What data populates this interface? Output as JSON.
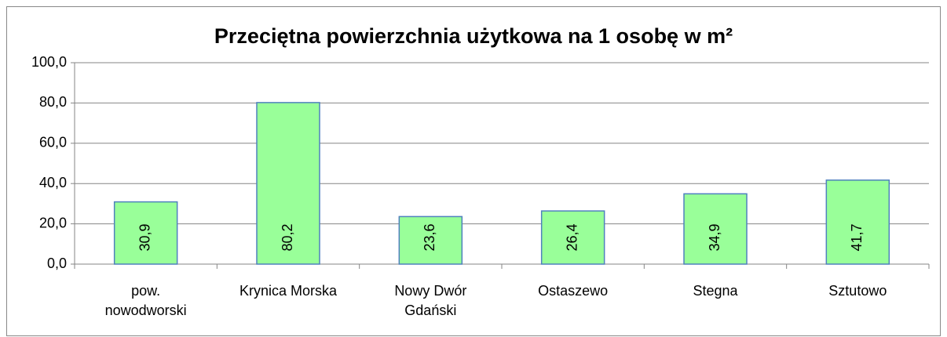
{
  "chart_data": {
    "type": "bar",
    "title": "Przeciętna powierzchnia użytkowa na 1 osobę w m²",
    "categories": [
      "pow.\nnowodworski",
      "Krynica Morska",
      "Nowy Dwór\nGdański",
      "Ostaszewo",
      "Stegna",
      "Sztutowo"
    ],
    "values": [
      30.9,
      80.2,
      23.6,
      26.4,
      34.9,
      41.7
    ],
    "value_labels": [
      "30,9",
      "80,2",
      "23,6",
      "26,4",
      "34,9",
      "41,7"
    ],
    "color": "#99ff99",
    "edge_color": "#4f81bd",
    "ylim": [
      0,
      100
    ],
    "yticks": [
      {
        "value": 0,
        "label": "0,0"
      },
      {
        "value": 20,
        "label": "20,0"
      },
      {
        "value": 40,
        "label": "40,0"
      },
      {
        "value": 60,
        "label": "60,0"
      },
      {
        "value": 80,
        "label": "80,0"
      },
      {
        "value": 100,
        "label": "100,0"
      }
    ],
    "grid": true
  }
}
